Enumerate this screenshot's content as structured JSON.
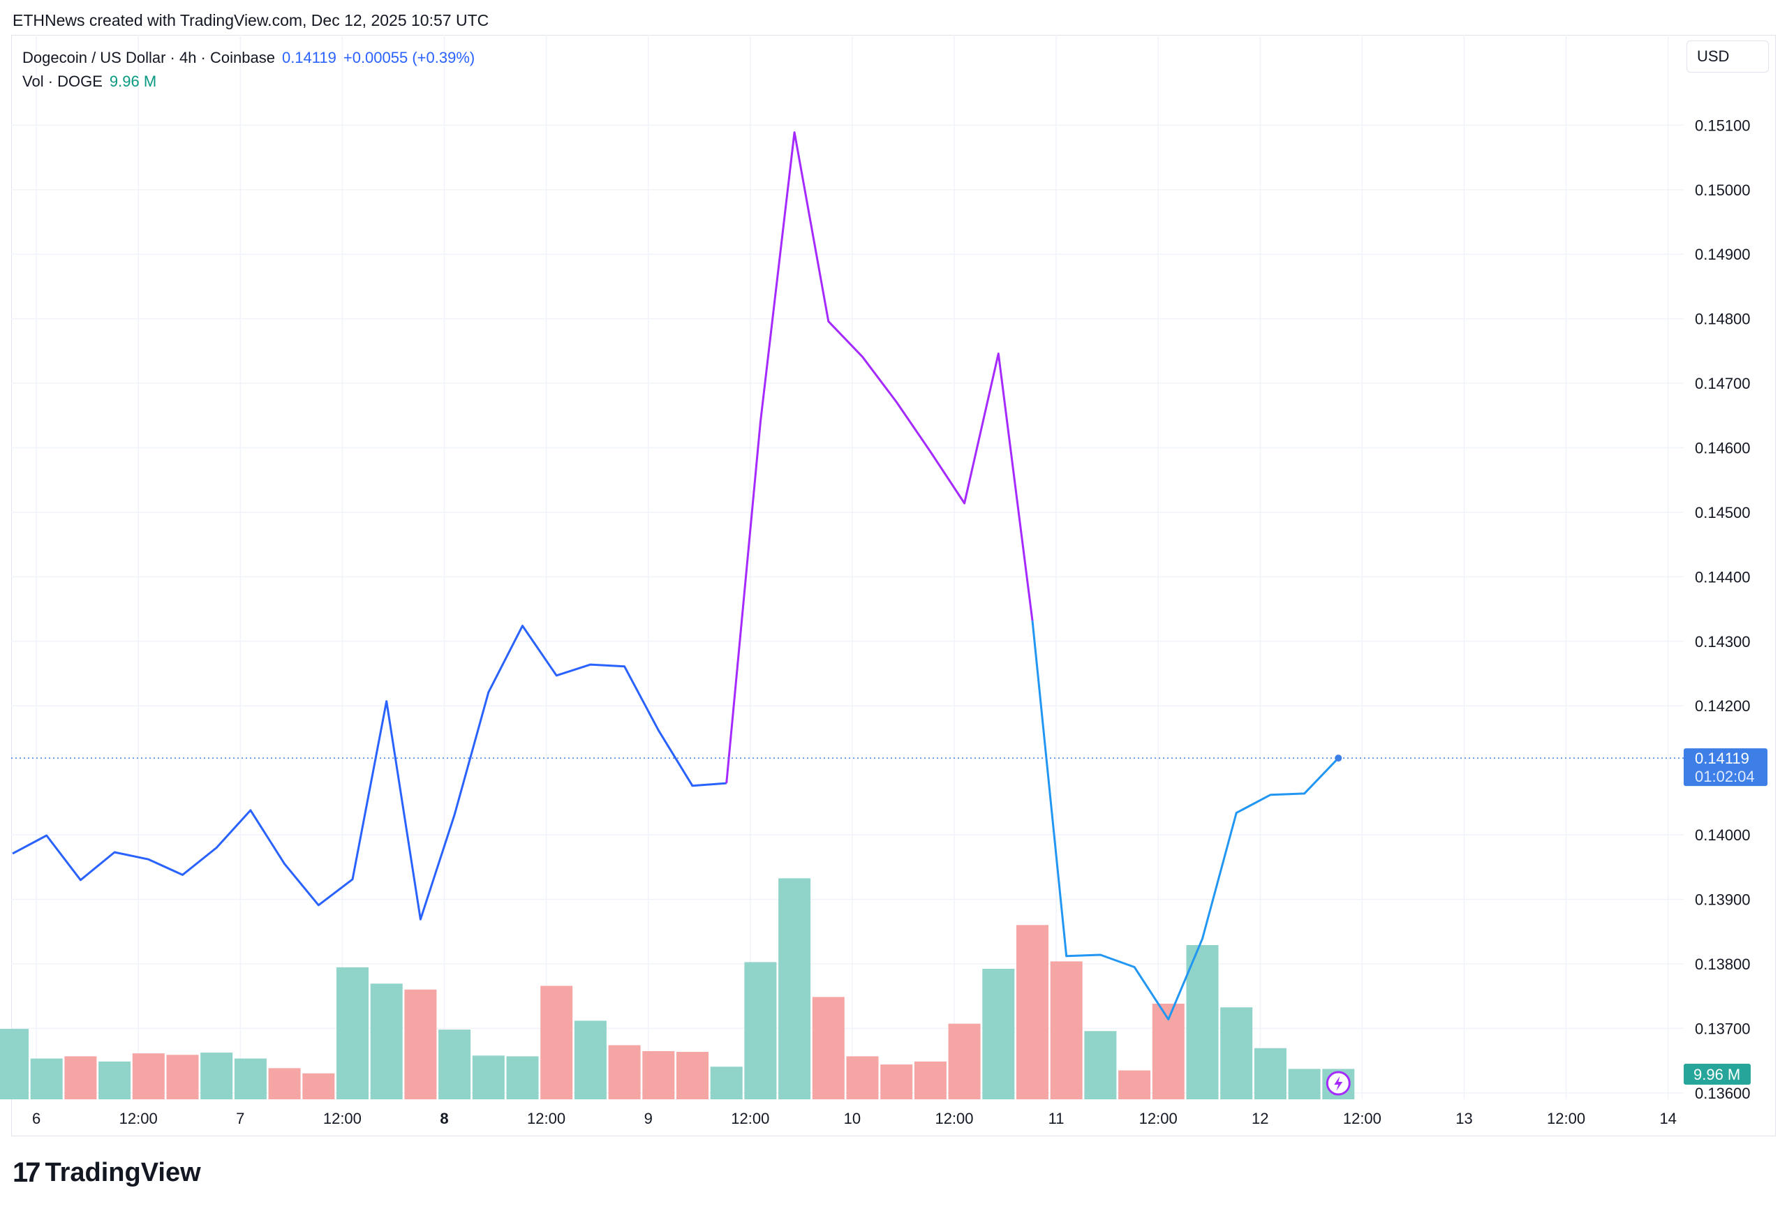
{
  "credit": "ETHNews created with TradingView.com, Dec 12, 2025 10:57 UTC",
  "legend": {
    "symbol": "Dogecoin / US Dollar · 4h · Coinbase",
    "price": "0.14119",
    "change": "+0.00055 (+0.39%)",
    "volume_label": "Vol · DOGE",
    "volume_value": "9.96 M"
  },
  "currency": "USD",
  "brand": {
    "logo_text": "17",
    "name": "TradingView"
  },
  "colors": {
    "up_volume": "#8fd3c9",
    "down_volume": "#f5a6a4",
    "line_blue": "#2962ff",
    "line_purple": "#a52aff",
    "line_cyan": "#2196f3",
    "last_price_tag": "#3d7fe6",
    "volume_tag": "#26a69a"
  },
  "chart_data": {
    "type": "line",
    "title": "Dogecoin / US Dollar · 4h · Coinbase",
    "ylabel": "USD",
    "ylim": [
      0.1359,
      0.1524
    ],
    "y_ticks": [
      "0.15100",
      "0.15000",
      "0.14900",
      "0.14800",
      "0.14700",
      "0.14600",
      "0.14500",
      "0.14400",
      "0.14300",
      "0.14200",
      "0.14000",
      "0.13900",
      "0.13800",
      "0.13700",
      "0.13600"
    ],
    "x_tick_labels": [
      {
        "label": "6",
        "t": 0.7
      },
      {
        "label": "12:00",
        "t": 3.7
      },
      {
        "label": "7",
        "t": 6.7
      },
      {
        "label": "12:00",
        "t": 9.7
      },
      {
        "label": "8",
        "t": 12.7
      },
      {
        "label": "12:00",
        "t": 15.7
      },
      {
        "label": "9",
        "t": 18.7
      },
      {
        "label": "12:00",
        "t": 21.7
      },
      {
        "label": "10",
        "t": 24.7
      },
      {
        "label": "12:00",
        "t": 27.7
      },
      {
        "label": "11",
        "t": 30.7
      },
      {
        "label": "12:00",
        "t": 33.7
      },
      {
        "label": "12",
        "t": 36.7
      },
      {
        "label": "12:00",
        "t": 39.7
      },
      {
        "label": "13",
        "t": 42.7
      },
      {
        "label": "12:00",
        "t": 45.7
      },
      {
        "label": "14",
        "t": 48.7
      }
    ],
    "price_series": [
      0.13971,
      0.13999,
      0.1393,
      0.13973,
      0.13962,
      0.13938,
      0.1398,
      0.14038,
      0.13955,
      0.13891,
      0.13931,
      0.14207,
      0.13869,
      0.14031,
      0.14221,
      0.14324,
      0.14247,
      0.14264,
      0.14261,
      0.14162,
      0.14076,
      0.1408,
      0.1464,
      0.15089,
      0.14796,
      0.14741,
      0.14671,
      0.14594,
      0.14514,
      0.14746,
      0.14332,
      0.13812,
      0.13814,
      0.13795,
      0.13714,
      0.13839,
      0.14034,
      0.14062,
      0.14064,
      0.14119
    ],
    "volume": {
      "values": [
        0.95,
        0.55,
        0.58,
        0.51,
        0.62,
        0.6,
        0.63,
        0.55,
        0.42,
        0.35,
        1.78,
        1.56,
        1.48,
        0.94,
        0.59,
        0.58,
        1.53,
        1.06,
        0.73,
        0.65,
        0.64,
        0.44,
        1.85,
        2.98,
        1.38,
        0.58,
        0.47,
        0.51,
        1.02,
        1.76,
        2.35,
        1.86,
        0.92,
        0.39,
        1.29,
        2.08,
        1.24,
        0.69,
        0.41,
        0.41
      ],
      "direction": [
        "up",
        "up",
        "down",
        "up",
        "down",
        "down",
        "up",
        "up",
        "down",
        "down",
        "up",
        "up",
        "down",
        "up",
        "up",
        "up",
        "down",
        "up",
        "down",
        "down",
        "down",
        "up",
        "up",
        "up",
        "down",
        "down",
        "down",
        "down",
        "down",
        "up",
        "down",
        "down",
        "up",
        "down",
        "down",
        "up",
        "up",
        "up",
        "up",
        "up"
      ],
      "max": 3.2
    },
    "last_price": {
      "value": "0.14119",
      "countdown": "01:02:04"
    },
    "last_volume": "9.96 M"
  }
}
